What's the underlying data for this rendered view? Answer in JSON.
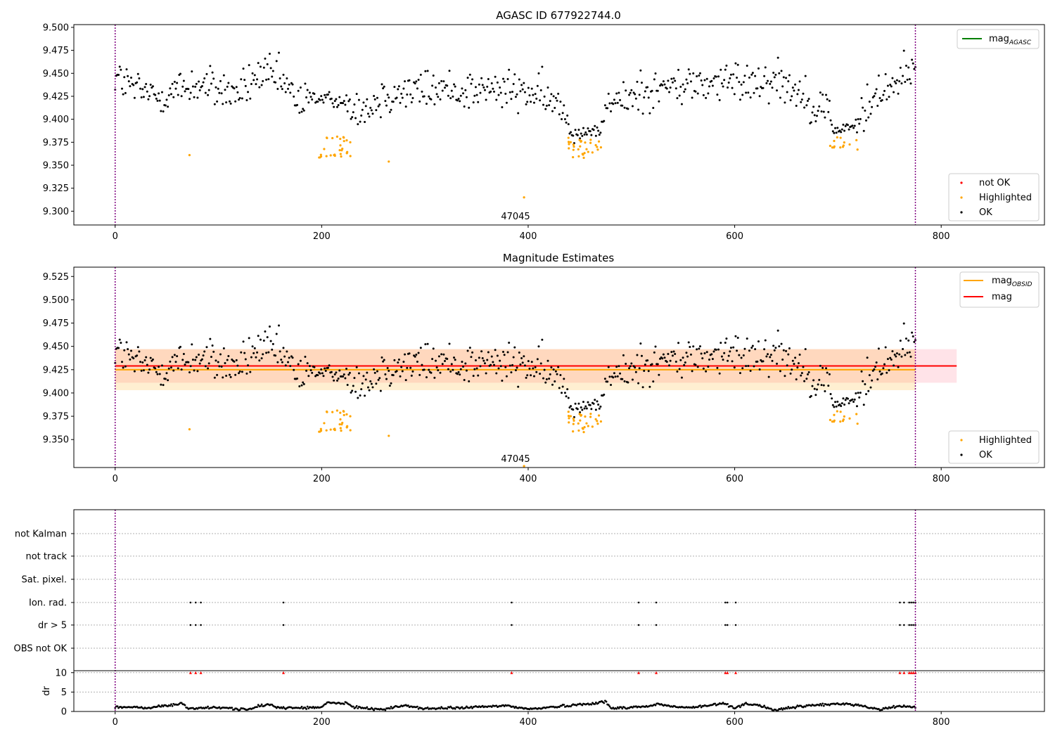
{
  "chart_data": [
    {
      "type": "scatter",
      "title": "AGASC ID 677922744.0",
      "xlim": [
        -40,
        900
      ],
      "ylim": [
        9.285,
        9.503
      ],
      "xticks": [
        0,
        200,
        400,
        600,
        800
      ],
      "yticks": [
        9.3,
        9.325,
        9.35,
        9.375,
        9.4,
        9.425,
        9.45,
        9.475,
        9.5
      ],
      "vlines": [
        0,
        775
      ],
      "annotation": {
        "text": "47045",
        "x": 386,
        "y": 9.292
      },
      "legend_lines": [
        {
          "label": "mag",
          "sub": "AGASC",
          "color": "#008000"
        }
      ],
      "legend_points": [
        {
          "label": "not OK",
          "color": "#ff0000"
        },
        {
          "label": "Highlighted",
          "color": "#ffa500"
        },
        {
          "label": "OK",
          "color": "#000000"
        }
      ],
      "series": [
        {
          "name": "OK",
          "color": "#000000",
          "x_range": [
            0,
            775
          ],
          "n": 700,
          "anchors": [
            [
              0,
              9.447
            ],
            [
              20,
              9.432
            ],
            [
              40,
              9.425
            ],
            [
              60,
              9.432
            ],
            [
              80,
              9.438
            ],
            [
              100,
              9.432
            ],
            [
              120,
              9.428
            ],
            [
              140,
              9.448
            ],
            [
              160,
              9.442
            ],
            [
              175,
              9.422
            ],
            [
              185,
              9.418
            ],
            [
              195,
              9.425
            ],
            [
              230,
              9.418
            ],
            [
              245,
              9.413
            ],
            [
              262,
              9.428
            ],
            [
              300,
              9.432
            ],
            [
              350,
              9.432
            ],
            [
              400,
              9.43
            ],
            [
              420,
              9.42
            ],
            [
              435,
              9.41
            ],
            [
              442,
              9.384
            ],
            [
              460,
              9.388
            ],
            [
              470,
              9.385
            ],
            [
              478,
              9.42
            ],
            [
              495,
              9.418
            ],
            [
              505,
              9.43
            ],
            [
              560,
              9.438
            ],
            [
              600,
              9.44
            ],
            [
              640,
              9.445
            ],
            [
              660,
              9.432
            ],
            [
              675,
              9.418
            ],
            [
              690,
              9.41
            ],
            [
              695,
              9.388
            ],
            [
              715,
              9.388
            ],
            [
              720,
              9.4
            ],
            [
              740,
              9.43
            ],
            [
              760,
              9.445
            ],
            [
              775,
              9.455
            ]
          ],
          "excluded": [
            [
              195,
              228
            ],
            [
              436,
              472
            ],
            [
              692,
              720
            ]
          ]
        },
        {
          "name": "Highlighted",
          "color": "#ffa500",
          "points": [
            [
              72,
              9.361
            ],
            [
              265,
              9.354
            ],
            [
              396,
              9.315
            ]
          ],
          "clusters": [
            {
              "x_range": [
                196,
                228
              ],
              "y_range": [
                9.358,
                9.382
              ],
              "n": 30
            },
            {
              "x_range": [
                436,
                472
              ],
              "y_range": [
                9.358,
                9.38
              ],
              "n": 30
            },
            {
              "x_range": [
                692,
                720
              ],
              "y_range": [
                9.367,
                9.381
              ],
              "n": 14
            }
          ]
        }
      ]
    },
    {
      "type": "scatter",
      "title": "Magnitude Estimates",
      "xlim": [
        -40,
        900
      ],
      "ylim": [
        9.32,
        9.535
      ],
      "xticks": [
        0,
        200,
        400,
        600,
        800
      ],
      "yticks": [
        9.35,
        9.375,
        9.4,
        9.425,
        9.45,
        9.475,
        9.5,
        9.525
      ],
      "vlines": [
        0,
        775
      ],
      "annotation": {
        "text": "47045",
        "x": 386,
        "y": 9.33
      },
      "bands": [
        {
          "color": "#ffc0cb",
          "opacity": 0.45,
          "x_range": [
            0,
            815
          ],
          "y_range": [
            9.411,
            9.447
          ]
        },
        {
          "color": "#ffa500",
          "opacity": 0.18,
          "x_range": [
            0,
            775
          ],
          "y_range": [
            9.403,
            9.447
          ]
        }
      ],
      "hlines": [
        {
          "label": "mag",
          "sub": "OBSID",
          "color": "#ffa500",
          "y": 9.425,
          "x_range": [
            0,
            775
          ]
        },
        {
          "label": "mag",
          "color": "#ff0000",
          "y": 9.429,
          "x_range": [
            0,
            815
          ]
        }
      ],
      "legend_points": [
        {
          "label": "Highlighted",
          "color": "#ffa500"
        },
        {
          "label": "OK",
          "color": "#000000"
        }
      ],
      "series_ref": 0
    },
    {
      "type": "scatter",
      "title": "",
      "xlim": [
        -40,
        900
      ],
      "xticks": [
        0,
        200,
        400,
        600,
        800
      ],
      "vlines": [
        0,
        775
      ],
      "flag_rows": [
        "not Kalman",
        "not track",
        "Sat. pixel.",
        "Ion. rad.",
        "dr > 5",
        "OBS not OK"
      ],
      "flags": {
        "Ion. rad.": [
          73,
          78,
          83,
          163,
          384,
          507,
          524,
          591,
          593,
          601,
          760,
          764,
          769,
          771,
          773,
          775
        ],
        "dr > 5": [
          73,
          78,
          83,
          163,
          384,
          507,
          524,
          591,
          593,
          601,
          760,
          764,
          769,
          771,
          773,
          775
        ]
      },
      "dr": {
        "ylabel": "dr",
        "ylim": [
          0,
          10.5
        ],
        "yticks": [
          0,
          5,
          10
        ],
        "capped_at": 10,
        "capped_x": [
          73,
          78,
          83,
          163,
          384,
          507,
          524,
          591,
          593,
          601,
          760,
          764,
          769,
          771,
          773,
          775
        ],
        "x_range": [
          0,
          775
        ],
        "n": 700,
        "profile": [
          [
            0,
            1.2
          ],
          [
            30,
            0.9
          ],
          [
            60,
            1.8
          ],
          [
            65,
            2.2
          ],
          [
            70,
            0.8
          ],
          [
            100,
            1.0
          ],
          [
            130,
            0.5
          ],
          [
            140,
            1.4
          ],
          [
            150,
            1.8
          ],
          [
            160,
            0.9
          ],
          [
            200,
            1.0
          ],
          [
            205,
            2.3
          ],
          [
            225,
            2.0
          ],
          [
            230,
            1.2
          ],
          [
            260,
            0.5
          ],
          [
            280,
            1.6
          ],
          [
            300,
            0.7
          ],
          [
            340,
            1.0
          ],
          [
            380,
            1.5
          ],
          [
            400,
            0.6
          ],
          [
            430,
            1.3
          ],
          [
            470,
            2.3
          ],
          [
            475,
            2.6
          ],
          [
            480,
            0.8
          ],
          [
            520,
            1.4
          ],
          [
            525,
            2.0
          ],
          [
            540,
            1.2
          ],
          [
            560,
            1.0
          ],
          [
            590,
            2.1
          ],
          [
            600,
            0.9
          ],
          [
            610,
            2.0
          ],
          [
            620,
            1.8
          ],
          [
            640,
            0.3
          ],
          [
            660,
            1.2
          ],
          [
            680,
            1.7
          ],
          [
            710,
            2.0
          ],
          [
            720,
            1.6
          ],
          [
            740,
            0.5
          ],
          [
            760,
            1.4
          ],
          [
            775,
            1.2
          ]
        ]
      }
    }
  ]
}
